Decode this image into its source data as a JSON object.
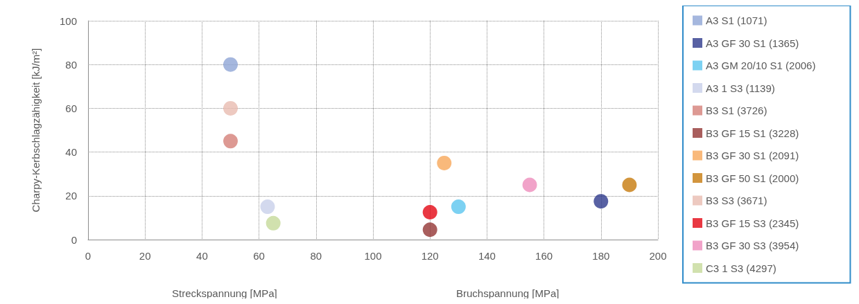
{
  "chart_data": {
    "type": "scatter",
    "ylabel": "Charpy-Kerbschlagzähigkeit [kJ/m²]",
    "xlabel": "Streckspannung [MPa]",
    "annotations": [
      "Bruchspannung [MPa]"
    ],
    "xlim": [
      0,
      200
    ],
    "xticks": [
      0,
      20,
      40,
      60,
      80,
      100,
      120,
      140,
      160,
      180,
      200
    ],
    "ylim": [
      0,
      100
    ],
    "yticks": [
      0,
      20,
      40,
      60,
      80,
      100
    ],
    "grid": true,
    "legend": "right",
    "marker": "circle",
    "series": [
      {
        "name": "A3 S1 (1071)",
        "color": "#8fa5d6",
        "x": [
          50
        ],
        "values": [
          80
        ]
      },
      {
        "name": "A3 GF 30 S1 (1365)",
        "color": "#2e3a8c",
        "x": [
          180
        ],
        "values": [
          17.5
        ]
      },
      {
        "name": "A3 GM 20/10 S1 (2006)",
        "color": "#5bc5ef",
        "x": [
          130
        ],
        "values": [
          15
        ]
      },
      {
        "name": "A3 1 S3 (1139)",
        "color": "#c8d0ea",
        "x": [
          63
        ],
        "values": [
          15
        ]
      },
      {
        "name": "B3 S1 (3726)",
        "color": "#d47f78",
        "x": [
          50
        ],
        "values": [
          45
        ]
      },
      {
        "name": "B3 GF 15 S1 (3228)",
        "color": "#943634",
        "x": [
          120
        ],
        "values": [
          4.5
        ]
      },
      {
        "name": "B3 GF 30 S1 (2091)",
        "color": "#f7a85a",
        "x": [
          125
        ],
        "values": [
          35
        ]
      },
      {
        "name": "B3 GF 50 S1 (2000)",
        "color": "#c77b0c",
        "x": [
          190
        ],
        "values": [
          25
        ]
      },
      {
        "name": "B3 S3 (3671)",
        "color": "#e8bcb0",
        "x": [
          50
        ],
        "values": [
          60
        ]
      },
      {
        "name": "B3 GF 15 S3 (2345)",
        "color": "#e30613",
        "x": [
          120
        ],
        "values": [
          12.5
        ]
      },
      {
        "name": "B3 GF 30 S3 (3954)",
        "color": "#ee8cbb",
        "x": [
          155
        ],
        "values": [
          25
        ]
      },
      {
        "name": "C3 1 S3 (4297)",
        "color": "#c5d99a",
        "x": [
          65
        ],
        "values": [
          7.5
        ]
      }
    ]
  }
}
